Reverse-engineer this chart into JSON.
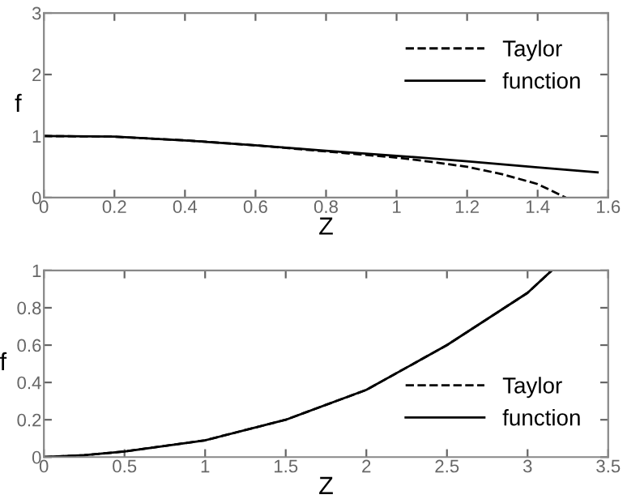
{
  "chart_data": [
    {
      "type": "line",
      "xlabel": "Z",
      "ylabel": "f",
      "xlim": [
        0,
        1.6
      ],
      "xticks": [
        0,
        0.2,
        0.4,
        0.6,
        0.8,
        1,
        1.2,
        1.4,
        1.6
      ],
      "ylim": [
        0,
        3
      ],
      "yticks": [
        0,
        1,
        2,
        3
      ],
      "legend": "top right",
      "grid": false,
      "series": [
        {
          "name": "Taylor",
          "color": "#000000",
          "line_style": "dashed",
          "x": [
            0,
            0.2,
            0.4,
            0.6,
            0.8,
            1.0,
            1.1,
            1.2,
            1.3,
            1.4,
            1.48
          ],
          "values": [
            1.0,
            0.99,
            0.93,
            0.85,
            0.75,
            0.65,
            0.58,
            0.5,
            0.38,
            0.22,
            0.0
          ]
        },
        {
          "name": "function",
          "color": "#000000",
          "line_style": "solid",
          "x": [
            0,
            0.2,
            0.4,
            0.6,
            0.8,
            1.0,
            1.2,
            1.4,
            1.57
          ],
          "values": [
            1.0,
            0.99,
            0.93,
            0.85,
            0.76,
            0.68,
            0.59,
            0.49,
            0.41
          ]
        }
      ]
    },
    {
      "type": "line",
      "xlabel": "Z",
      "ylabel": "f",
      "xlim": [
        0,
        3.5
      ],
      "xticks": [
        0,
        0.5,
        1,
        1.5,
        2,
        2.5,
        3,
        3.5
      ],
      "ylim": [
        0,
        1
      ],
      "yticks": [
        0,
        0.2,
        0.4,
        0.6,
        0.8,
        1
      ],
      "legend": "bottom right",
      "grid": false,
      "series": [
        {
          "name": "Taylor",
          "color": "#000000",
          "line_style": "dashed",
          "x": [
            0,
            0.25,
            0.5,
            1.0,
            1.5,
            2.0,
            2.5,
            3.0,
            3.15
          ],
          "values": [
            0,
            0.01,
            0.03,
            0.09,
            0.2,
            0.36,
            0.6,
            0.88,
            1.0
          ]
        },
        {
          "name": "function",
          "color": "#000000",
          "line_style": "solid",
          "x": [
            0,
            0.25,
            0.5,
            1.0,
            1.5,
            2.0,
            2.5,
            3.0,
            3.15
          ],
          "values": [
            0,
            0.01,
            0.03,
            0.09,
            0.2,
            0.36,
            0.6,
            0.88,
            1.0
          ]
        }
      ]
    }
  ]
}
